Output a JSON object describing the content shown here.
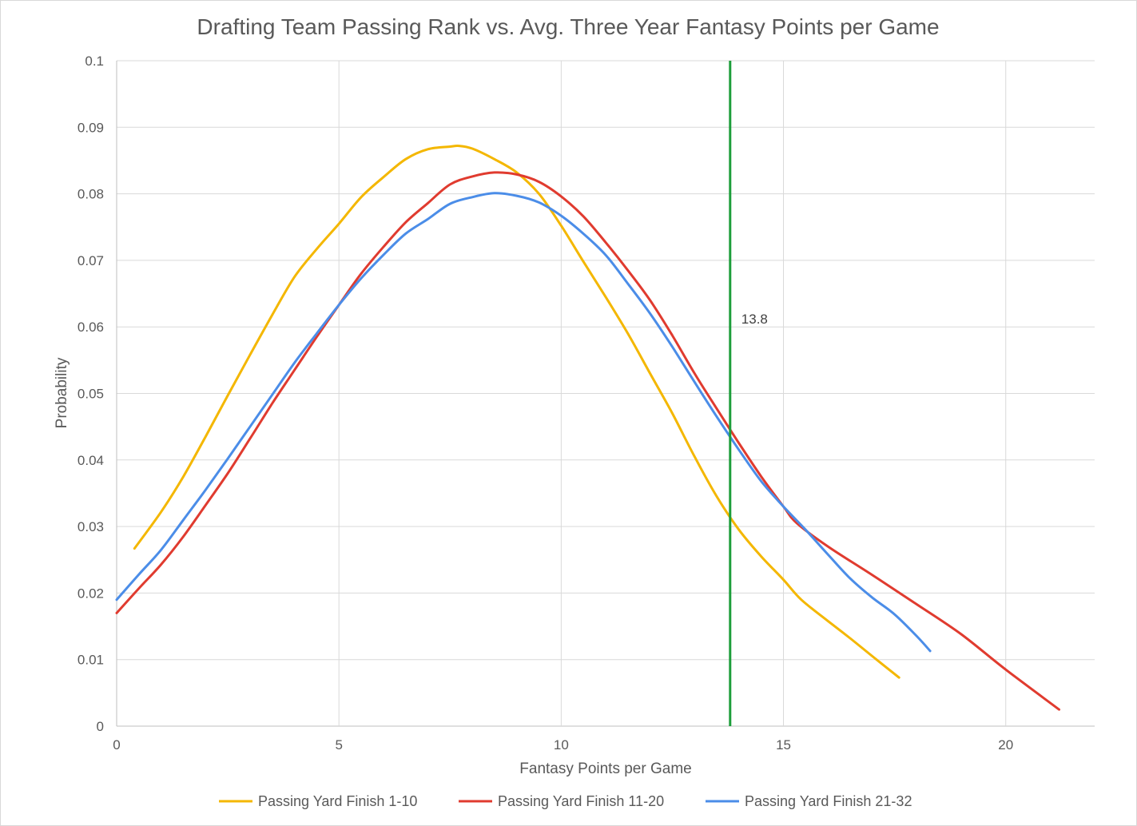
{
  "chart_data": {
    "type": "line",
    "title": "Drafting Team Passing Rank vs. Avg. Three Year Fantasy Points per Game",
    "xlabel": "Fantasy Points per Game",
    "ylabel": "Probability",
    "xlim": [
      0,
      22
    ],
    "ylim": [
      0,
      0.1
    ],
    "x_ticks": [
      "0",
      "5",
      "10",
      "15",
      "20"
    ],
    "y_ticks": [
      "0",
      "0.01",
      "0.02",
      "0.03",
      "0.04",
      "0.05",
      "0.06",
      "0.07",
      "0.08",
      "0.09",
      "0.1"
    ],
    "grid": true,
    "legend_position": "bottom",
    "series": [
      {
        "name": "Passing Yard Finish 1-10",
        "color": "#f4b700",
        "points": [
          [
            0.4,
            0.0267
          ],
          [
            1.0,
            0.0322
          ],
          [
            1.5,
            0.0375
          ],
          [
            2.0,
            0.0435
          ],
          [
            2.5,
            0.0497
          ],
          [
            3.0,
            0.0558
          ],
          [
            3.5,
            0.0618
          ],
          [
            4.0,
            0.0675
          ],
          [
            4.5,
            0.0717
          ],
          [
            5.0,
            0.0755
          ],
          [
            5.5,
            0.0795
          ],
          [
            6.0,
            0.0825
          ],
          [
            6.5,
            0.0852
          ],
          [
            7.0,
            0.0867
          ],
          [
            7.5,
            0.0871
          ],
          [
            7.7,
            0.0872
          ],
          [
            8.0,
            0.0868
          ],
          [
            8.5,
            0.0852
          ],
          [
            9.0,
            0.0832
          ],
          [
            9.5,
            0.08
          ],
          [
            10.0,
            0.0752
          ],
          [
            10.5,
            0.0698
          ],
          [
            11.0,
            0.0645
          ],
          [
            11.5,
            0.059
          ],
          [
            12.0,
            0.053
          ],
          [
            12.5,
            0.047
          ],
          [
            13.0,
            0.0405
          ],
          [
            13.5,
            0.0345
          ],
          [
            14.0,
            0.0295
          ],
          [
            14.5,
            0.0255
          ],
          [
            15.0,
            0.022
          ],
          [
            15.4,
            0.019
          ],
          [
            16.0,
            0.0158
          ],
          [
            16.5,
            0.0132
          ],
          [
            17.0,
            0.0105
          ],
          [
            17.6,
            0.0073
          ]
        ]
      },
      {
        "name": "Passing Yard Finish 11-20",
        "color": "#e03b2f",
        "points": [
          [
            0.0,
            0.017
          ],
          [
            0.5,
            0.0207
          ],
          [
            1.0,
            0.0243
          ],
          [
            1.5,
            0.0285
          ],
          [
            2.0,
            0.0332
          ],
          [
            2.5,
            0.038
          ],
          [
            3.0,
            0.0432
          ],
          [
            3.5,
            0.0485
          ],
          [
            4.0,
            0.0535
          ],
          [
            4.5,
            0.0585
          ],
          [
            5.0,
            0.0633
          ],
          [
            5.5,
            0.068
          ],
          [
            6.0,
            0.072
          ],
          [
            6.5,
            0.0757
          ],
          [
            7.0,
            0.0786
          ],
          [
            7.5,
            0.0814
          ],
          [
            8.0,
            0.0826
          ],
          [
            8.5,
            0.0832
          ],
          [
            9.0,
            0.0829
          ],
          [
            9.5,
            0.0818
          ],
          [
            10.0,
            0.0796
          ],
          [
            10.5,
            0.0766
          ],
          [
            11.0,
            0.0727
          ],
          [
            11.5,
            0.0685
          ],
          [
            12.0,
            0.064
          ],
          [
            12.5,
            0.0587
          ],
          [
            13.0,
            0.053
          ],
          [
            13.5,
            0.0477
          ],
          [
            14.0,
            0.0425
          ],
          [
            14.5,
            0.0375
          ],
          [
            15.0,
            0.033
          ],
          [
            15.3,
            0.0305
          ],
          [
            16.0,
            0.027
          ],
          [
            17.0,
            0.0227
          ],
          [
            18.0,
            0.0183
          ],
          [
            19.0,
            0.0138
          ],
          [
            20.0,
            0.0085
          ],
          [
            21.2,
            0.0025
          ]
        ]
      },
      {
        "name": "Passing Yard Finish 21-32",
        "color": "#4b8de8",
        "points": [
          [
            0.0,
            0.019
          ],
          [
            0.5,
            0.0228
          ],
          [
            1.0,
            0.0265
          ],
          [
            1.5,
            0.031
          ],
          [
            2.0,
            0.0355
          ],
          [
            2.5,
            0.0402
          ],
          [
            3.0,
            0.045
          ],
          [
            3.5,
            0.0498
          ],
          [
            4.0,
            0.0546
          ],
          [
            4.5,
            0.059
          ],
          [
            5.0,
            0.0633
          ],
          [
            5.5,
            0.0673
          ],
          [
            6.0,
            0.0708
          ],
          [
            6.5,
            0.074
          ],
          [
            7.0,
            0.0762
          ],
          [
            7.5,
            0.0785
          ],
          [
            8.0,
            0.0795
          ],
          [
            8.5,
            0.0801
          ],
          [
            9.0,
            0.0797
          ],
          [
            9.5,
            0.0787
          ],
          [
            10.0,
            0.0767
          ],
          [
            10.5,
            0.074
          ],
          [
            11.0,
            0.0708
          ],
          [
            11.5,
            0.0665
          ],
          [
            12.0,
            0.062
          ],
          [
            12.5,
            0.057
          ],
          [
            13.0,
            0.0517
          ],
          [
            13.5,
            0.0465
          ],
          [
            14.0,
            0.0415
          ],
          [
            14.5,
            0.0368
          ],
          [
            15.0,
            0.033
          ],
          [
            15.5,
            0.0295
          ],
          [
            16.0,
            0.0258
          ],
          [
            16.5,
            0.0222
          ],
          [
            17.0,
            0.0193
          ],
          [
            17.5,
            0.0168
          ],
          [
            18.0,
            0.0135
          ],
          [
            18.3,
            0.0113
          ]
        ]
      }
    ],
    "reference_line": {
      "x": 13.8,
      "label": "13.8",
      "color": "#1e9e3b"
    }
  }
}
